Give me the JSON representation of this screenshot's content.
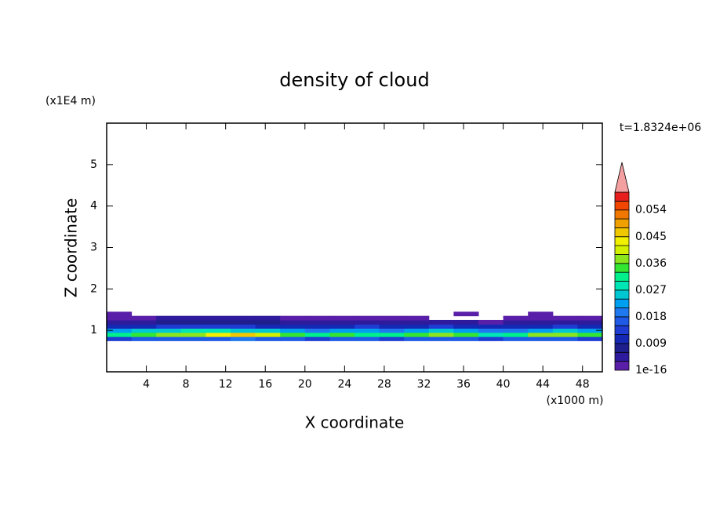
{
  "chart_data": {
    "type": "contour",
    "title": "density of cloud",
    "xlabel": "X coordinate",
    "ylabel": "Z coordinate",
    "xunit": "(x1000 m)",
    "yunit": "(x1E4 m)",
    "annotation": "t=1.8324e+06",
    "xlim": [
      0,
      50
    ],
    "ylim": [
      0,
      6
    ],
    "xticks": [
      4,
      8,
      12,
      16,
      20,
      24,
      28,
      32,
      36,
      40,
      44,
      48
    ],
    "yticks": [
      1,
      2,
      3,
      4,
      5
    ],
    "x": [
      0,
      2.5,
      5,
      7.5,
      10,
      12.5,
      15,
      17.5,
      20,
      22.5,
      25,
      27.5,
      30,
      32.5,
      35,
      37.5,
      40,
      42.5,
      45,
      47.5,
      50
    ],
    "z": [
      0.75,
      0.85,
      0.95,
      1.05,
      1.15,
      1.25,
      1.35,
      1.45
    ],
    "values": [
      [
        0.014,
        0.015,
        0.016,
        0.015,
        0.017,
        0.018,
        0.016,
        0.015,
        0.014,
        0.016,
        0.015,
        0.014,
        0.016,
        0.017,
        0.015,
        0.014,
        0.015,
        0.016,
        0.015,
        0.014
      ],
      [
        0.03,
        0.033,
        0.036,
        0.038,
        0.043,
        0.046,
        0.04,
        0.035,
        0.032,
        0.034,
        0.031,
        0.03,
        0.035,
        0.037,
        0.034,
        0.029,
        0.031,
        0.036,
        0.038,
        0.034
      ],
      [
        0.022,
        0.024,
        0.025,
        0.027,
        0.028,
        0.026,
        0.024,
        0.021,
        0.02,
        0.023,
        0.022,
        0.019,
        0.022,
        0.025,
        0.021,
        0.018,
        0.02,
        0.023,
        0.026,
        0.022
      ],
      [
        0.01,
        0.011,
        0.012,
        0.013,
        0.014,
        0.012,
        0.011,
        0.01,
        0.009,
        0.011,
        0.012,
        0.01,
        0.011,
        0.012,
        0.01,
        0.009,
        0.01,
        0.011,
        0.012,
        0.01
      ],
      [
        0.004,
        0.005,
        0.006,
        0.007,
        0.008,
        0.007,
        0.006,
        0.005,
        0.004,
        0.005,
        0.004,
        0.003,
        0.004,
        0.005,
        0.003,
        0.002,
        0.003,
        0.004,
        0.005,
        0.003
      ],
      [
        0.001,
        0.002,
        0.003,
        0.004,
        0.004,
        0.003,
        0.003,
        0.002,
        0.002,
        0.002,
        0.001,
        0.001,
        0.001,
        0,
        0,
        0,
        0.001,
        0.001,
        0.001,
        0.001
      ],
      [
        0.001,
        0,
        0,
        0,
        0,
        0,
        0,
        0,
        0,
        0,
        0,
        0,
        0,
        0,
        0.001,
        0,
        0,
        0.001,
        0,
        0
      ]
    ],
    "levels": [
      1e-16,
      0.003,
      0.006,
      0.009,
      0.012,
      0.015,
      0.018,
      0.021,
      0.024,
      0.027,
      0.03,
      0.033,
      0.036,
      0.039,
      0.042,
      0.045,
      0.048,
      0.051,
      0.054,
      0.057,
      0.06
    ],
    "level_ticks": [
      0,
      3,
      6,
      9,
      12,
      15,
      18
    ],
    "colors": [
      "#5a1fa8",
      "#2d1a9c",
      "#1e1e8c",
      "#1428b4",
      "#1e3cd2",
      "#1e5ae6",
      "#1e78f0",
      "#00a0f0",
      "#00c8d2",
      "#00e6b4",
      "#00f08c",
      "#32e632",
      "#8ce61e",
      "#d2f000",
      "#f0f000",
      "#f0c800",
      "#f0a000",
      "#f07800",
      "#f04600",
      "#e61e1e"
    ],
    "extend_color": "#f5a0a0"
  }
}
